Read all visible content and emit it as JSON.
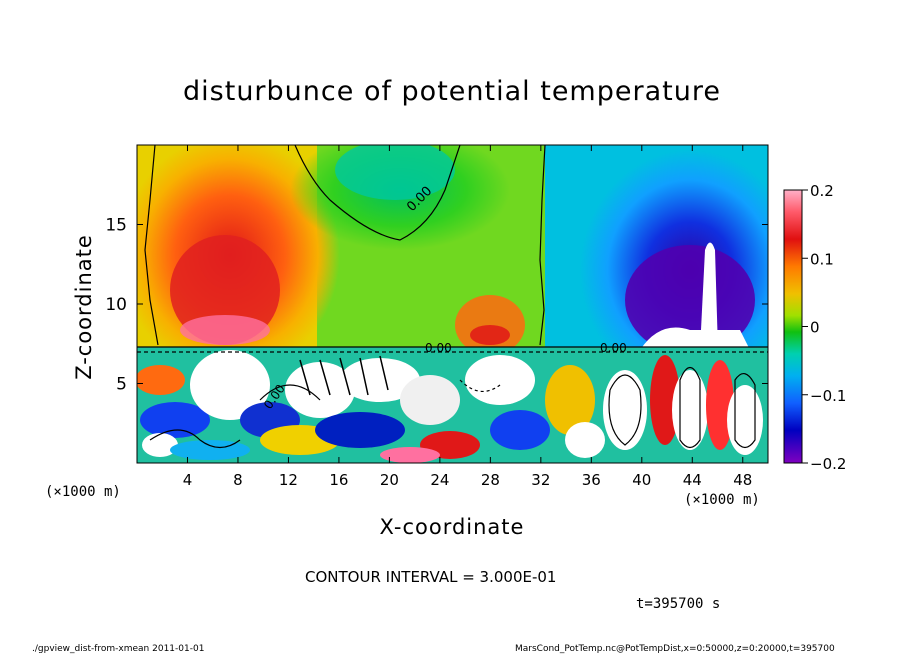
{
  "chart_data": {
    "type": "heatmap",
    "title": "disturbunce of potential temperature",
    "xlabel": "X-coordinate",
    "ylabel": "Z-coordinate",
    "x_unit": "(×1000 m)",
    "x_ticks": [
      4,
      8,
      12,
      16,
      20,
      24,
      28,
      32,
      36,
      40,
      44,
      48
    ],
    "y_ticks": [
      5,
      10,
      15
    ],
    "xlim": [
      0,
      50
    ],
    "ylim": [
      0,
      20
    ],
    "colorbar_ticks": [
      "0.2",
      "0.1",
      "0",
      "−0.1",
      "−0.2"
    ],
    "colorbar_range": [
      -0.2,
      0.2
    ],
    "contour_labels": [
      "0.00",
      "0.00",
      "0.00",
      "0.00"
    ],
    "contour_interval_text": "CONTOUR INTERVAL = 3.000E-01",
    "time_text": "t=395700 s"
  },
  "footer": {
    "left": "./gpview_dist-from-xmean  2011-01-01",
    "right": "MarsCond_PotTemp.nc@PotTempDist,x=0:50000,z=0:20000,t=395700"
  }
}
